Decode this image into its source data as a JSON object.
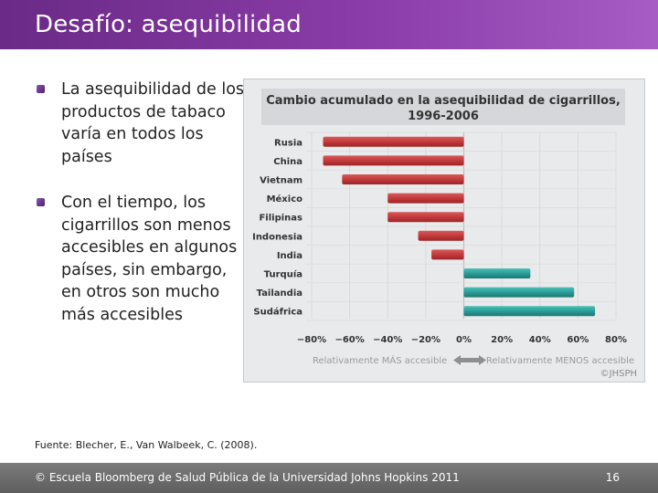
{
  "slide": {
    "title": "Desafío: asequibilidad",
    "bullets": [
      "La asequibilidad de los productos de tabaco varía en todos los países",
      "Con el tiempo, los cigarrillos son menos accesibles en algunos países, sin embargo, en otros son mucho más accesibles"
    ],
    "source": "Fuente: Blecher, E., Van Walbeek, C. (2008).",
    "footer_text": "© Escuela Bloomberg de Salud Pública de la Universidad Johns Hopkins 2011",
    "page_number": "16"
  },
  "chart_data": {
    "type": "bar",
    "orientation": "horizontal",
    "title": "Cambio acumulado en la asequibilidad de cigarrillos,",
    "subtitle": "1996-2006",
    "categories": [
      "Rusia",
      "China",
      "Vietnam",
      "México",
      "Filipinas",
      "Indonesia",
      "India",
      "Turquía",
      "Tailandia",
      "Sudáfrica"
    ],
    "values": [
      -74,
      -74,
      -64,
      -40,
      -40,
      -24,
      -17,
      35,
      58,
      69
    ],
    "xlim": [
      -80,
      80
    ],
    "xticks": [
      -80,
      -60,
      -40,
      -20,
      0,
      20,
      40,
      60,
      80
    ],
    "xtick_labels": [
      "−80%",
      "−60%",
      "−40%",
      "−20%",
      "0%",
      "20%",
      "40%",
      "60%",
      "80%"
    ],
    "left_annotation": "Relativamente MÁS accesible",
    "right_annotation": "Relativamente MENOS accesible",
    "watermark": "©JHSPH",
    "grid": true,
    "colors": {
      "negative": "#c23a3c",
      "positive": "#2a9d96"
    }
  }
}
